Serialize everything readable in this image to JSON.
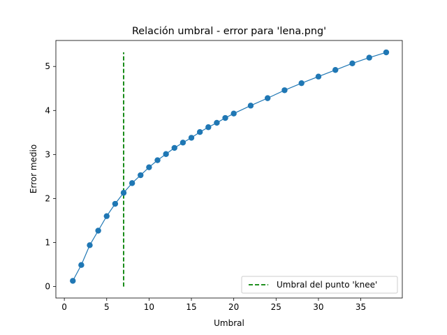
{
  "chart_data": {
    "type": "line",
    "title": "Relación umbral - error para 'lena.png'",
    "xlabel": "Umbral",
    "ylabel": "Error medio",
    "xlim": [
      -1.0,
      39.9
    ],
    "ylim": [
      -0.26,
      5.59
    ],
    "xticks": [
      0,
      5,
      10,
      15,
      20,
      25,
      30,
      35
    ],
    "yticks": [
      0,
      1,
      2,
      3,
      4,
      5
    ],
    "grid": false,
    "legend_position": "lower right",
    "series": [
      {
        "name": "",
        "color": "#1f77b4",
        "marker": "circle",
        "x": [
          1,
          2,
          3,
          4,
          5,
          6,
          7,
          8,
          9,
          10,
          11,
          12,
          13,
          14,
          15,
          16,
          17,
          18,
          19,
          20,
          22,
          24,
          26,
          28,
          30,
          32,
          34,
          36,
          38
        ],
        "y": [
          0.13,
          0.49,
          0.94,
          1.27,
          1.6,
          1.88,
          2.13,
          2.35,
          2.53,
          2.71,
          2.87,
          3.01,
          3.15,
          3.27,
          3.38,
          3.51,
          3.62,
          3.72,
          3.83,
          3.93,
          4.11,
          4.28,
          4.46,
          4.62,
          4.77,
          4.92,
          5.07,
          5.2,
          5.32
        ]
      }
    ],
    "vlines": [
      {
        "name": "Umbral del punto 'knee'",
        "x": 7,
        "ymin": 0.0,
        "ymax": 5.32,
        "color": "#008000",
        "style": "dashed"
      }
    ]
  }
}
